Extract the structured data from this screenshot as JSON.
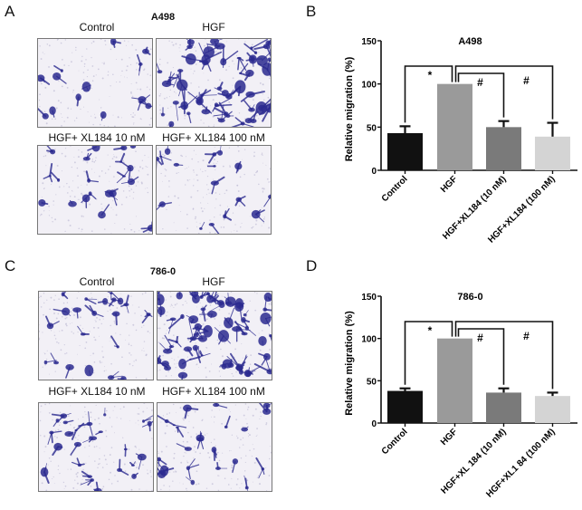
{
  "panels": {
    "A": {
      "letter": "A",
      "title": "A498",
      "labels": [
        "Control",
        "HGF",
        "HGF+ XL184 10 nM",
        "HGF+ XL184 100 nM"
      ]
    },
    "B": {
      "letter": "B"
    },
    "C": {
      "letter": "C",
      "title": "786-0",
      "labels": [
        "Control",
        "HGF",
        "HGF+ XL184 10 nM",
        "HGF+ XL184 100 nM"
      ]
    },
    "D": {
      "letter": "D"
    }
  },
  "colors": {
    "stain": "#2b2a8f",
    "background": "#f2f0f6",
    "bar_control": "#111111",
    "bar_hgf": "#9a9a9a",
    "bar_xl10": "#7a7a7a",
    "bar_xl100": "#d4d4d4"
  },
  "chart_data": [
    {
      "type": "bar",
      "panel": "B",
      "title": "A498",
      "xlabel": "",
      "ylabel": "Relative migration (%)",
      "ylim": [
        0,
        150
      ],
      "yticks": [
        0,
        50,
        100,
        150
      ],
      "categories": [
        "Control",
        "HGF",
        "HGF+XL184 (10 nM)",
        "HGF+XL184 (100 nM)"
      ],
      "values": [
        43,
        100,
        50,
        39
      ],
      "error": [
        8,
        0,
        7,
        16
      ],
      "annotations": [
        {
          "from": "Control",
          "to": "HGF",
          "symbol": "*"
        },
        {
          "from": "HGF",
          "to": "HGF+XL184 (10 nM)",
          "symbol": "#"
        },
        {
          "from": "HGF",
          "to": "HGF+XL184 (100 nM)",
          "symbol": "#"
        }
      ],
      "grid": false,
      "legend": "none"
    },
    {
      "type": "bar",
      "panel": "D",
      "title": "786-0",
      "xlabel": "",
      "ylabel": "Relative migration (%)",
      "ylim": [
        0,
        150
      ],
      "yticks": [
        0,
        50,
        100,
        150
      ],
      "categories": [
        "Control",
        "HGF",
        "HGF+XL 184 (10 nM)",
        "HGF+XL1 84 (100 nM)"
      ],
      "values": [
        38,
        100,
        36,
        32
      ],
      "error": [
        3,
        0,
        5,
        4
      ],
      "annotations": [
        {
          "from": "Control",
          "to": "HGF",
          "symbol": "*"
        },
        {
          "from": "HGF",
          "to": "HGF+XL 184 (10 nM)",
          "symbol": "#"
        },
        {
          "from": "HGF",
          "to": "HGF+XL1 84 (100 nM)",
          "symbol": "#"
        }
      ],
      "grid": false,
      "legend": "none"
    }
  ]
}
